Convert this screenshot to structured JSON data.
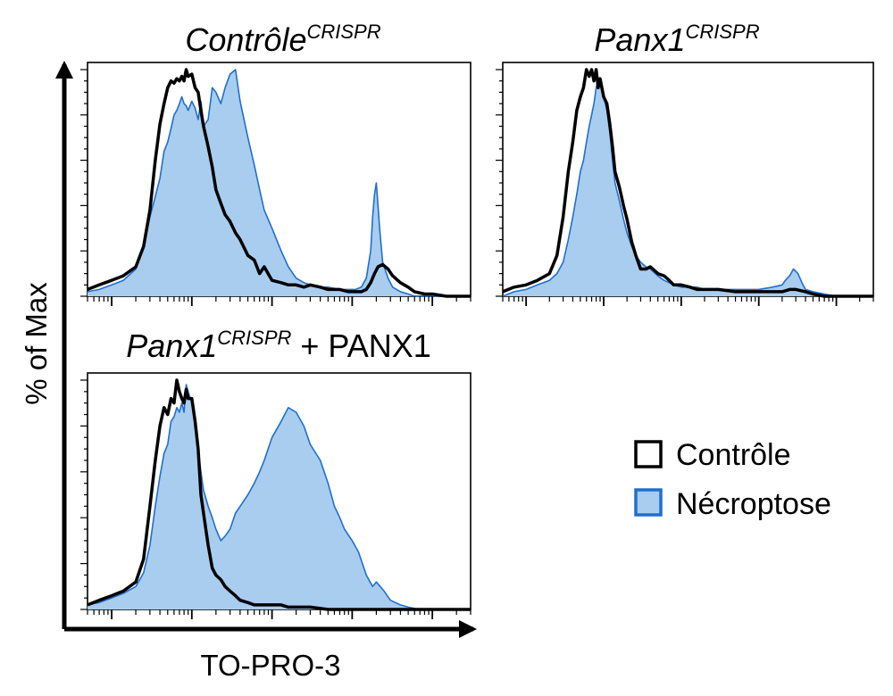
{
  "figure": {
    "ylabel": "% of Max",
    "xlabel": "TO-PRO-3",
    "legend": [
      {
        "label": "Contrôle",
        "fill": "none",
        "stroke": "#000000"
      },
      {
        "label": "Nécroptose",
        "fill": "#a9cdef",
        "stroke": "#1f6fd0"
      }
    ]
  },
  "chart_data": [
    {
      "type": "area",
      "title": "Contrôle",
      "title_sup": "CRISPR",
      "title_suffix": "",
      "xscale": "log",
      "xlim": [
        0.5,
        30000
      ],
      "ylim": [
        0,
        100
      ],
      "series": [
        {
          "name": "Contrôle",
          "x": [
            0.5,
            0.7,
            1,
            1.4,
            2,
            2.5,
            3,
            3.5,
            4,
            4.5,
            5,
            5.5,
            6,
            6.5,
            7,
            7.5,
            8,
            8.5,
            9,
            10,
            11,
            12,
            13,
            14,
            16,
            18,
            20,
            23,
            26,
            30,
            35,
            40,
            50,
            60,
            70,
            80,
            100,
            130,
            160,
            200,
            250,
            300,
            400,
            500,
            700,
            900,
            1100,
            1300,
            1500,
            1700,
            1900,
            2100,
            2400,
            2800,
            3200,
            4000,
            5000,
            6000,
            8000,
            10000,
            15000,
            20000,
            30000
          ],
          "y": [
            3,
            5,
            7,
            9,
            13,
            22,
            38,
            60,
            76,
            85,
            92,
            95,
            94,
            96,
            95,
            97,
            95,
            100,
            97,
            98,
            92,
            90,
            82,
            75,
            66,
            57,
            47,
            41,
            36,
            33,
            28,
            25,
            18,
            16,
            10,
            13,
            7,
            6,
            5,
            5,
            4,
            5,
            4,
            3,
            3,
            2,
            2,
            2,
            3,
            6,
            10,
            13,
            14,
            12,
            9,
            6,
            4,
            2,
            1,
            1,
            0,
            0,
            0
          ]
        },
        {
          "name": "Nécroptose",
          "x": [
            0.5,
            0.7,
            1,
            1.4,
            2,
            2.5,
            3,
            3.5,
            4,
            4.5,
            5,
            5.5,
            6,
            6.5,
            7,
            7.5,
            8,
            8.5,
            9,
            10,
            11,
            12,
            13,
            14,
            16,
            18,
            20,
            23,
            26,
            30,
            35,
            40,
            50,
            60,
            70,
            80,
            100,
            130,
            160,
            200,
            250,
            300,
            400,
            500,
            700,
            900,
            1100,
            1300,
            1500,
            1700,
            1800,
            1900,
            2000,
            2100,
            2200,
            2400,
            2800,
            3200,
            4000,
            5000,
            6000,
            8000,
            10000,
            15000,
            20000,
            30000
          ],
          "y": [
            2,
            3,
            5,
            7,
            12,
            22,
            35,
            44,
            52,
            64,
            68,
            74,
            80,
            82,
            85,
            88,
            85,
            84,
            82,
            86,
            83,
            78,
            86,
            75,
            78,
            92,
            90,
            85,
            92,
            98,
            100,
            86,
            70,
            58,
            47,
            38,
            30,
            20,
            13,
            8,
            6,
            5,
            4,
            4,
            3,
            3,
            3,
            4,
            8,
            20,
            35,
            45,
            50,
            40,
            30,
            15,
            8,
            4,
            2,
            1,
            0,
            0,
            0,
            0,
            0,
            0
          ]
        }
      ]
    },
    {
      "type": "area",
      "title": "Panx1",
      "title_sup": "CRISPR",
      "title_suffix": "",
      "xscale": "log",
      "xlim": [
        0.5,
        30000
      ],
      "ylim": [
        0,
        100
      ],
      "series": [
        {
          "name": "Contrôle",
          "x": [
            0.5,
            0.7,
            1,
            1.4,
            2,
            2.5,
            3,
            3.5,
            4,
            4.5,
            5,
            5.5,
            6,
            6.5,
            7,
            7.5,
            8,
            8.5,
            9,
            10,
            11,
            12,
            13,
            14,
            16,
            18,
            20,
            23,
            26,
            30,
            35,
            40,
            50,
            60,
            70,
            80,
            100,
            130,
            160,
            200,
            300,
            500,
            800,
            1000,
            1500,
            2000,
            2500,
            3000,
            4000,
            5000,
            7000,
            10000,
            15000,
            20000,
            30000
          ],
          "y": [
            2,
            4,
            5,
            7,
            10,
            18,
            35,
            55,
            68,
            82,
            88,
            92,
            100,
            97,
            100,
            95,
            100,
            92,
            96,
            88,
            85,
            76,
            66,
            55,
            48,
            40,
            34,
            24,
            18,
            12,
            12,
            13,
            10,
            9,
            7,
            5,
            5,
            4,
            3,
            3,
            3,
            2,
            2,
            2,
            2,
            2,
            3,
            3,
            2,
            1,
            0,
            0,
            0,
            0,
            0
          ]
        },
        {
          "name": "Nécroptose",
          "x": [
            0.5,
            0.7,
            1,
            1.4,
            2,
            2.5,
            3,
            3.5,
            4,
            4.5,
            5,
            5.5,
            6,
            6.5,
            7,
            7.5,
            8,
            8.5,
            9,
            10,
            11,
            12,
            13,
            14,
            16,
            18,
            20,
            23,
            26,
            30,
            35,
            40,
            50,
            60,
            70,
            80,
            100,
            130,
            160,
            200,
            300,
            500,
            800,
            1000,
            1500,
            2000,
            2200,
            2500,
            2800,
            3200,
            3600,
            4000,
            5000,
            7000,
            10000,
            15000,
            20000,
            30000
          ],
          "y": [
            0,
            2,
            3,
            5,
            7,
            10,
            15,
            25,
            35,
            45,
            55,
            60,
            68,
            75,
            80,
            85,
            92,
            96,
            95,
            88,
            82,
            72,
            60,
            50,
            42,
            34,
            28,
            22,
            18,
            15,
            13,
            12,
            9,
            7,
            6,
            5,
            4,
            4,
            4,
            3,
            3,
            3,
            3,
            3,
            4,
            5,
            7,
            9,
            12,
            10,
            6,
            3,
            2,
            1,
            0,
            0,
            0,
            0
          ]
        }
      ]
    },
    {
      "type": "area",
      "title": "Panx1",
      "title_sup": "CRISPR",
      "title_suffix": " + PANX1",
      "xscale": "log",
      "xlim": [
        0.5,
        30000
      ],
      "ylim": [
        0,
        100
      ],
      "series": [
        {
          "name": "Contrôle",
          "x": [
            0.5,
            0.7,
            1,
            1.4,
            2,
            2.5,
            3,
            3.5,
            4,
            4.5,
            5,
            5.5,
            6,
            6.5,
            7,
            7.5,
            8,
            8.5,
            9,
            10,
            11,
            12,
            13,
            14,
            16,
            18,
            20,
            23,
            26,
            30,
            35,
            40,
            50,
            60,
            70,
            80,
            100,
            130,
            160,
            200,
            300,
            500,
            800,
            1000,
            1500,
            2000,
            3000,
            5000,
            10000,
            30000
          ],
          "y": [
            2,
            4,
            6,
            8,
            12,
            22,
            45,
            65,
            80,
            88,
            85,
            92,
            90,
            100,
            95,
            92,
            90,
            96,
            92,
            92,
            82,
            70,
            50,
            42,
            28,
            18,
            15,
            13,
            10,
            8,
            6,
            4,
            3,
            2,
            2,
            2,
            2,
            2,
            1,
            1,
            1,
            0,
            0,
            0,
            0,
            0,
            0,
            0,
            0,
            0
          ]
        },
        {
          "name": "Nécroptose",
          "x": [
            0.5,
            0.7,
            1,
            1.4,
            2,
            2.5,
            3,
            3.5,
            4,
            4.5,
            5,
            5.5,
            6,
            6.5,
            7,
            7.5,
            8,
            8.5,
            9,
            10,
            11,
            12,
            13,
            14,
            16,
            18,
            20,
            23,
            26,
            30,
            35,
            40,
            50,
            60,
            70,
            80,
            100,
            130,
            160,
            200,
            250,
            300,
            400,
            500,
            600,
            700,
            800,
            1000,
            1200,
            1500,
            1800,
            2000,
            2500,
            3000,
            4000,
            5000,
            7000,
            10000,
            30000
          ],
          "y": [
            2,
            3,
            5,
            7,
            10,
            16,
            28,
            45,
            58,
            68,
            72,
            82,
            84,
            88,
            86,
            90,
            86,
            98,
            95,
            90,
            82,
            70,
            60,
            52,
            45,
            40,
            35,
            30,
            32,
            35,
            42,
            45,
            50,
            55,
            60,
            65,
            75,
            82,
            88,
            86,
            80,
            72,
            65,
            55,
            45,
            40,
            35,
            30,
            25,
            15,
            10,
            12,
            8,
            4,
            2,
            1,
            0,
            0,
            0
          ]
        }
      ]
    }
  ]
}
